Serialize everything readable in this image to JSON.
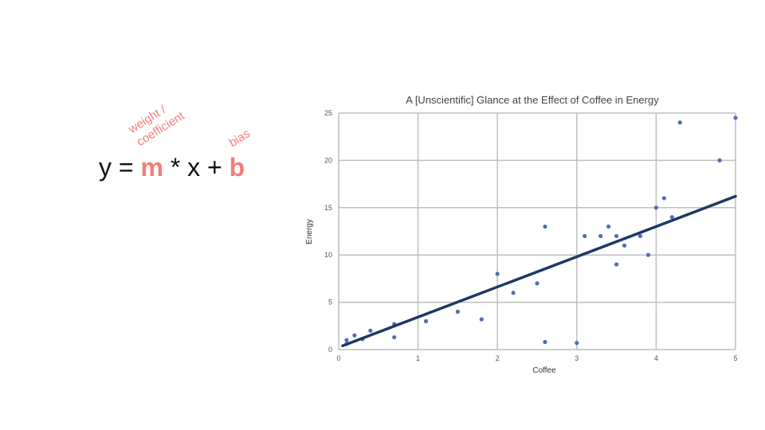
{
  "equation": {
    "y": "y",
    "eq": "=",
    "m": "m",
    "times": "*",
    "x": "x",
    "plus": "+",
    "b": "b",
    "highlight_color": "#f47d7b"
  },
  "annotations": {
    "weight_line1": "weight /",
    "weight_line2": "coefficient",
    "bias": "bias"
  },
  "chart_data": {
    "type": "scatter",
    "title": "A [Unscientific] Glance at the Effect of Coffee in Energy",
    "xlabel": "Coffee",
    "ylabel": "Energy",
    "xlim": [
      0,
      5
    ],
    "ylim": [
      0,
      25
    ],
    "xticks": [
      "0",
      "1",
      "2",
      "3",
      "4",
      "5"
    ],
    "yticks": [
      "0",
      "5",
      "10",
      "15",
      "20",
      "25"
    ],
    "grid": true,
    "point_color": "#4a6fb5",
    "trendline_color": "#1f3864",
    "points": [
      {
        "x": 0.1,
        "y": 0.6
      },
      {
        "x": 0.1,
        "y": 1.0
      },
      {
        "x": 0.2,
        "y": 1.5
      },
      {
        "x": 0.3,
        "y": 1.1
      },
      {
        "x": 0.4,
        "y": 2.0
      },
      {
        "x": 0.7,
        "y": 1.3
      },
      {
        "x": 0.7,
        "y": 2.7
      },
      {
        "x": 1.1,
        "y": 3.0
      },
      {
        "x": 1.5,
        "y": 4.0
      },
      {
        "x": 1.8,
        "y": 3.2
      },
      {
        "x": 2.0,
        "y": 8.0
      },
      {
        "x": 2.2,
        "y": 6.0
      },
      {
        "x": 2.5,
        "y": 7.0
      },
      {
        "x": 2.6,
        "y": 0.8
      },
      {
        "x": 2.6,
        "y": 13.0
      },
      {
        "x": 3.0,
        "y": 0.7
      },
      {
        "x": 3.1,
        "y": 12.0
      },
      {
        "x": 3.3,
        "y": 12.0
      },
      {
        "x": 3.4,
        "y": 13.0
      },
      {
        "x": 3.5,
        "y": 12.0
      },
      {
        "x": 3.5,
        "y": 9.0
      },
      {
        "x": 3.6,
        "y": 11.0
      },
      {
        "x": 3.8,
        "y": 12.0
      },
      {
        "x": 3.9,
        "y": 10.0
      },
      {
        "x": 4.0,
        "y": 15.0
      },
      {
        "x": 4.1,
        "y": 16.0
      },
      {
        "x": 4.2,
        "y": 14.0
      },
      {
        "x": 4.3,
        "y": 24.0
      },
      {
        "x": 4.8,
        "y": 20.0
      },
      {
        "x": 5.0,
        "y": 24.5
      }
    ],
    "trendline": {
      "x": [
        0.05,
        5.0
      ],
      "y": [
        0.4,
        16.2
      ]
    }
  }
}
